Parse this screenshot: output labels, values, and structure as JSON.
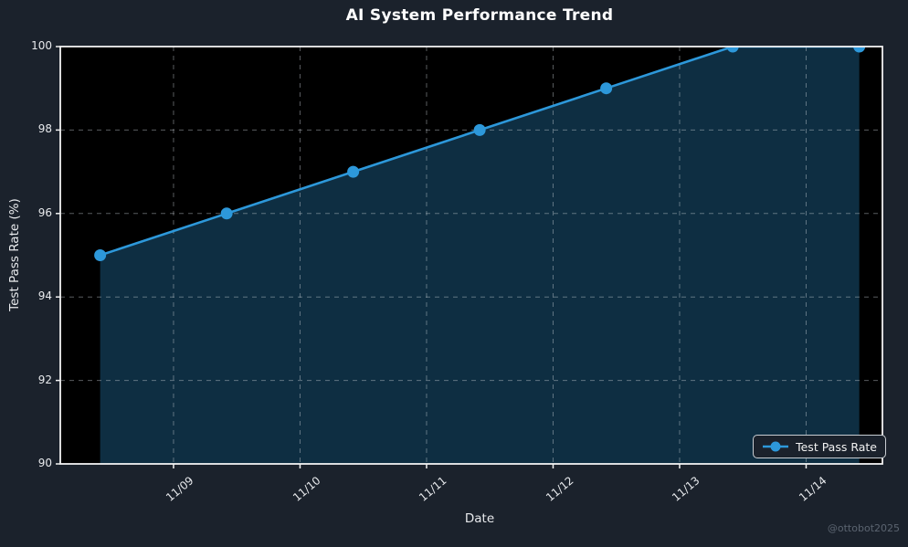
{
  "figure": {
    "title": "AI System Performance Trend",
    "watermark": "@ottobot2025"
  },
  "chart_data": {
    "type": "line",
    "title": "AI System Performance Trend",
    "xlabel": "Date",
    "ylabel": "Test Pass Rate (%)",
    "legend": {
      "label": "Test Pass Rate",
      "position": "lower right"
    },
    "ylim": [
      90,
      100
    ],
    "yticks": [
      90,
      92,
      94,
      96,
      98,
      100
    ],
    "xlim_days": [
      0.105,
      6.603
    ],
    "xticks": {
      "positions_days": [
        1,
        2,
        3,
        4,
        5,
        6
      ],
      "labels": [
        "11/09",
        "11/10",
        "11/11",
        "11/12",
        "11/13",
        "11/14"
      ]
    },
    "x_positions_days": [
      0.42,
      1.42,
      2.42,
      3.42,
      4.42,
      5.42,
      6.42
    ],
    "series": [
      {
        "name": "Test Pass Rate",
        "points": [
          {
            "date": "11/08",
            "value": 95
          },
          {
            "date": "11/09",
            "value": 96
          },
          {
            "date": "11/10",
            "value": 97
          },
          {
            "date": "11/11",
            "value": 98
          },
          {
            "date": "11/12",
            "value": 99
          },
          {
            "date": "11/13",
            "value": 100
          },
          {
            "date": "11/14",
            "value": 100
          }
        ]
      }
    ],
    "grid": "dashed",
    "area_fill": true,
    "colors": {
      "line": "#2d98da",
      "fill": "rgba(45,152,218,0.30)",
      "grid": "rgba(197,205,211,0.45)",
      "spine": "#f2f2f2",
      "tick_text": "#e8eaed",
      "title_text": "#ffffff",
      "watermark_text": "#5b6470",
      "figure_bg": "#1b222c",
      "plot_bg": "#000000"
    }
  }
}
